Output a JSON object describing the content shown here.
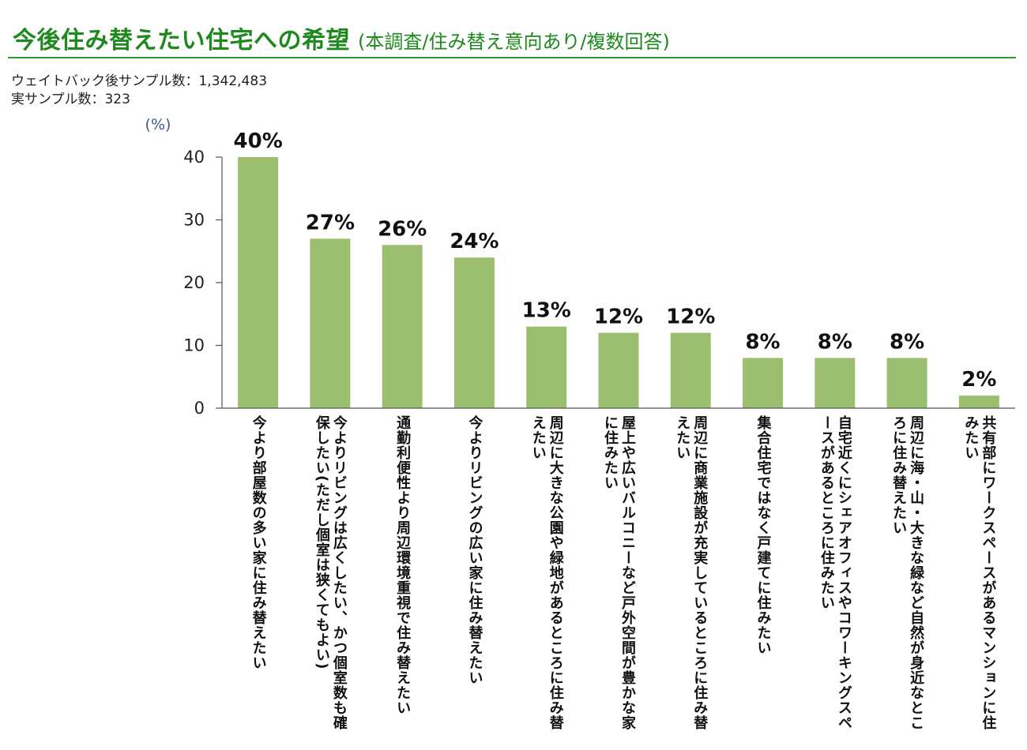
{
  "header": {
    "title": "今後住み替えたい住宅への希望",
    "subtitle": "(本調査/住み替え意向あり/複数回答)"
  },
  "samples": {
    "weighted": "ウェイトバック後サンプル数：1,342,483",
    "actual": "実サンプル数：323"
  },
  "colors": {
    "bar": "#9bbf6f",
    "title": "#1e8a1e",
    "rule": "#2e9a2e",
    "unit": "#3c5a8c"
  },
  "chart_data": {
    "type": "bar",
    "unit_label": "(%)",
    "ylim": [
      0,
      40
    ],
    "yticks": [
      0,
      10,
      20,
      30,
      40
    ],
    "grid": false,
    "categories": [
      "今より部屋数の多い家に住み替えたい",
      "今よりリビングは広くしたい、かつ個室数も確保したい(ただし個室は狭くてもよい)",
      "通勤利便性より周辺環境重視で住み替えたい",
      "今よりリビングの広い家に住み替えたい",
      "周辺に大きな公園や緑地があるところに住み替えたい",
      "屋上や広いバルコニーなど戸外空間が豊かな家に住みたい",
      "周辺に商業施設が充実しているところに住み替えたい",
      "集合住宅ではなく戸建てに住みたい",
      "自宅近くにシェアオフィスやコワーキングスペースがあるところに住みたい",
      "周辺に海・山・大きな緑など自然が身近なところに住み替えたい",
      "共有部にワークスペースがあるマンションに住みたい"
    ],
    "values": [
      40,
      27,
      26,
      24,
      13,
      12,
      12,
      8,
      8,
      8,
      2
    ],
    "data_labels": [
      "40%",
      "27%",
      "26%",
      "24%",
      "13%",
      "12%",
      "12%",
      "8%",
      "8%",
      "8%",
      "2%"
    ]
  }
}
